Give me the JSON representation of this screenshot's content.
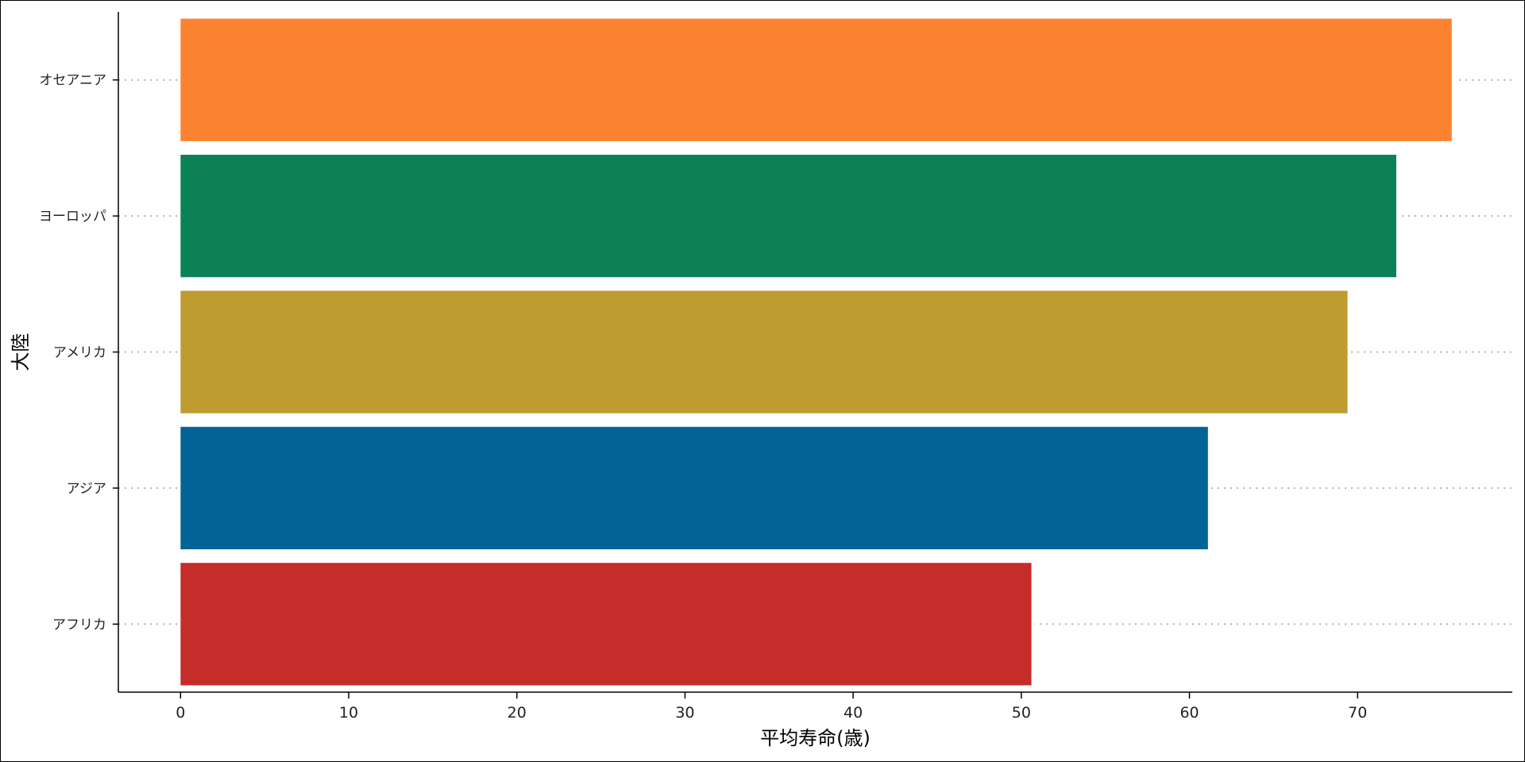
{
  "chart_data": {
    "type": "bar",
    "orientation": "horizontal",
    "title": "",
    "xlabel": "平均寿命(歳)",
    "ylabel": "大陸",
    "categories": [
      "アフリカ",
      "アジア",
      "アメリカ",
      "ヨーロッパ",
      "オセアニア"
    ],
    "values": [
      50.6,
      61.1,
      69.4,
      72.3,
      75.6
    ],
    "colors": [
      "#C62D2A",
      "#026496",
      "#BF9C30",
      "#0B8155",
      "#FB832F"
    ],
    "xlim": [
      -3.7,
      79.2
    ],
    "xticks": [
      0,
      10,
      20,
      30,
      40,
      50,
      60,
      70
    ],
    "grid": "horizontal dotted",
    "legend": "none"
  }
}
